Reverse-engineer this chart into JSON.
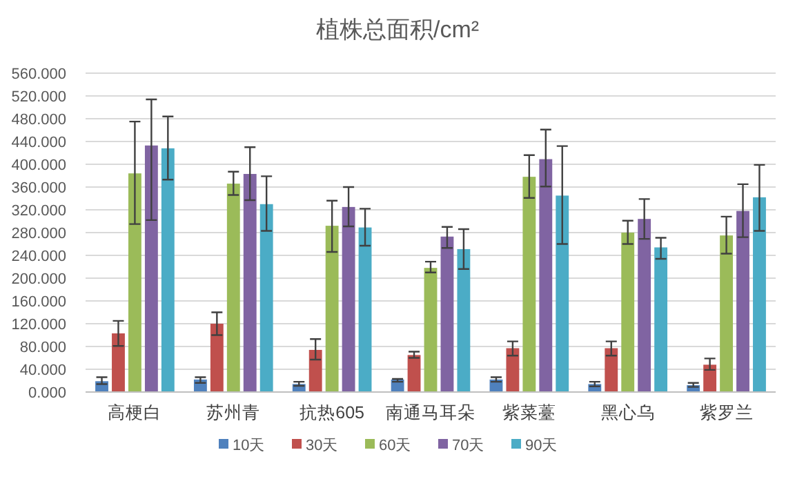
{
  "chart_data": {
    "type": "bar",
    "title": "植株总面积/cm²",
    "categories": [
      "高梗白",
      "苏州青",
      "抗热605",
      "南通马耳朵",
      "紫菜薹",
      "黑心乌",
      "紫罗兰"
    ],
    "series": [
      {
        "name": "10天",
        "color": "#4f81bd",
        "values": [
          19,
          22,
          14,
          22,
          22,
          14,
          12
        ],
        "errors": [
          [
            14,
            26
          ],
          [
            16,
            26
          ],
          [
            11,
            18
          ],
          [
            18,
            23
          ],
          [
            18,
            26
          ],
          [
            10,
            18
          ],
          [
            9,
            16
          ]
        ]
      },
      {
        "name": "30天",
        "color": "#c0504d",
        "values": [
          103,
          120,
          74,
          65,
          77,
          77,
          48
        ],
        "errors": [
          [
            81,
            125
          ],
          [
            100,
            140
          ],
          [
            57,
            93
          ],
          [
            60,
            71
          ],
          [
            64,
            89
          ],
          [
            64,
            89
          ],
          [
            39,
            59
          ]
        ]
      },
      {
        "name": "60天",
        "color": "#9bbb59",
        "values": [
          384,
          366,
          292,
          218,
          378,
          280,
          275
        ],
        "errors": [
          [
            295,
            475
          ],
          [
            346,
            387
          ],
          [
            246,
            336
          ],
          [
            210,
            229
          ],
          [
            341,
            416
          ],
          [
            260,
            301
          ],
          [
            243,
            308
          ]
        ]
      },
      {
        "name": "70天",
        "color": "#8064a2",
        "values": [
          433,
          383,
          325,
          273,
          409,
          304,
          318
        ],
        "errors": [
          [
            302,
            514
          ],
          [
            337,
            430
          ],
          [
            291,
            360
          ],
          [
            253,
            290
          ],
          [
            361,
            461
          ],
          [
            269,
            339
          ],
          [
            272,
            365
          ]
        ]
      },
      {
        "name": "90天",
        "color": "#4bacc6",
        "values": [
          428,
          330,
          289,
          251,
          345,
          254,
          342
        ],
        "errors": [
          [
            373,
            484
          ],
          [
            283,
            379
          ],
          [
            257,
            322
          ],
          [
            216,
            286
          ],
          [
            260,
            432
          ],
          [
            234,
            271
          ],
          [
            283,
            399
          ]
        ]
      }
    ],
    "ylim": [
      0,
      560
    ],
    "yticks": [
      {
        "value": 0,
        "label": "0.000"
      },
      {
        "value": 40,
        "label": "40.000"
      },
      {
        "value": 80,
        "label": "80.000"
      },
      {
        "value": 120,
        "label": "120.000"
      },
      {
        "value": 160,
        "label": "160.000"
      },
      {
        "value": 200,
        "label": "200.000"
      },
      {
        "value": 240,
        "label": "240.000"
      },
      {
        "value": 280,
        "label": "280.000"
      },
      {
        "value": 320,
        "label": "320.000"
      },
      {
        "value": 360,
        "label": "360.000"
      },
      {
        "value": 400,
        "label": "400.000"
      },
      {
        "value": 440,
        "label": "440.000"
      },
      {
        "value": 480,
        "label": "480.000"
      },
      {
        "value": 520,
        "label": "520.000"
      },
      {
        "value": 560,
        "label": "560.000"
      }
    ],
    "grid": "y",
    "legend": "bottom"
  }
}
